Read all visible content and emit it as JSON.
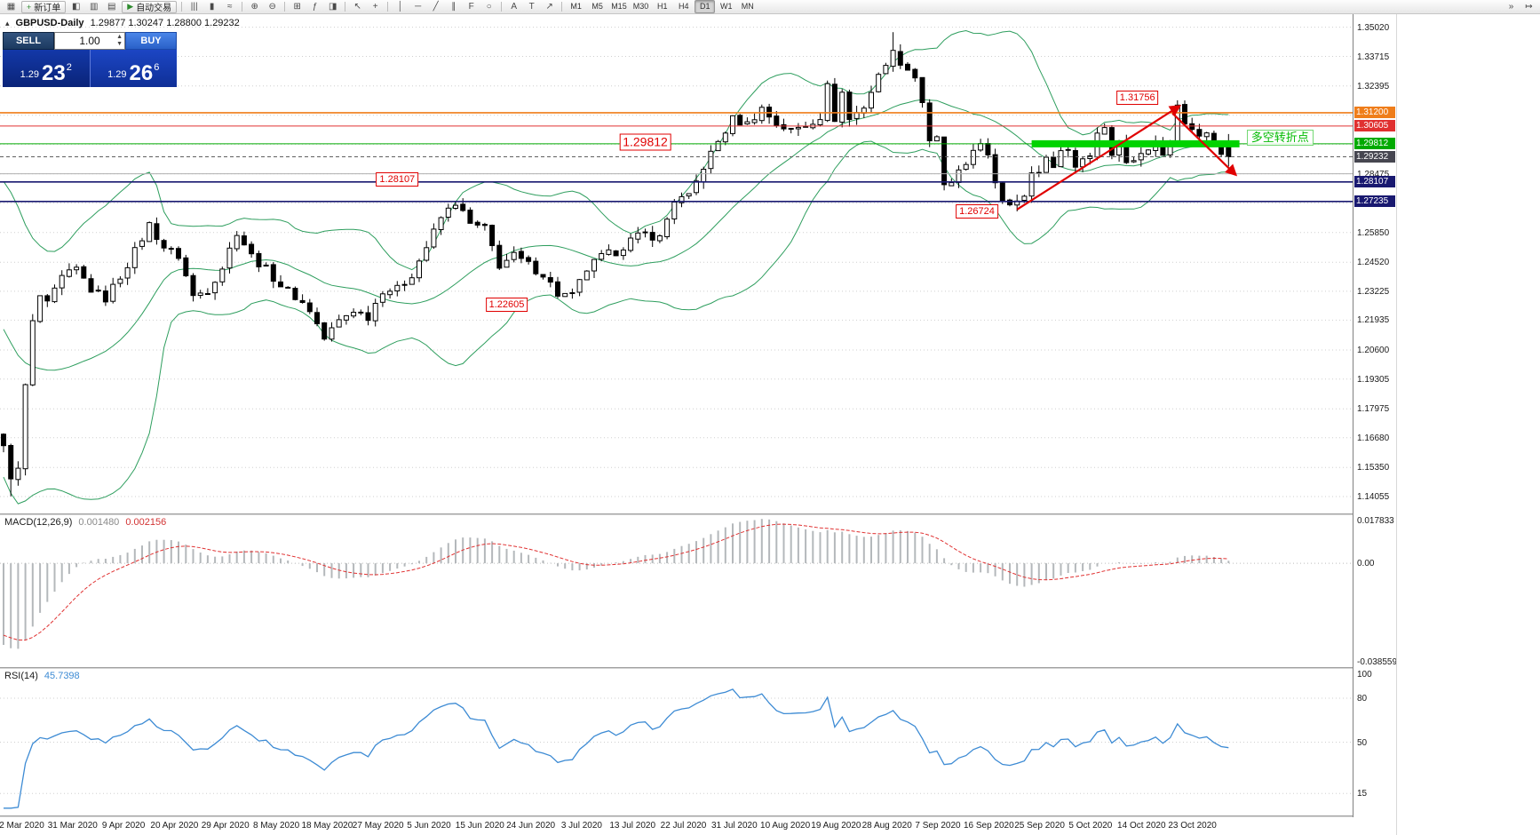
{
  "toolbar": {
    "new_order_icon": "+",
    "new_order_label": "新订单",
    "autotrade_icon": "▶",
    "autotrade_label": "自动交易",
    "timeframes": [
      "M1",
      "M5",
      "M15",
      "M30",
      "H1",
      "H4",
      "D1",
      "W1",
      "MN"
    ],
    "active_timeframe": "D1",
    "icon_groups": [
      {
        "container": "g-left",
        "icons": [
          {
            "name": "new-chart-icon",
            "glyph": "▦"
          }
        ]
      },
      {
        "container": "g-mid",
        "icons": [
          {
            "name": "market-watch-icon",
            "glyph": "◧"
          },
          {
            "name": "data-window-icon",
            "glyph": "▥"
          },
          {
            "name": "navigator-icon",
            "glyph": "▤"
          }
        ]
      },
      {
        "container": "g-charttype",
        "icons": [
          {
            "name": "bar-chart-icon",
            "glyph": "|||"
          },
          {
            "name": "candlestick-chart-icon",
            "glyph": "▮"
          },
          {
            "name": "line-chart-icon",
            "glyph": "≈"
          }
        ]
      },
      {
        "container": "g-zoom",
        "icons": [
          {
            "name": "zoom-in-icon",
            "glyph": "⊕"
          },
          {
            "name": "zoom-out-icon",
            "glyph": "⊖"
          }
        ]
      },
      {
        "container": "g-layout",
        "icons": [
          {
            "name": "tile-windows-icon",
            "glyph": "⊞"
          },
          {
            "name": "indicators-icon",
            "glyph": "ƒ"
          },
          {
            "name": "templates-icon",
            "glyph": "◨"
          }
        ]
      },
      {
        "container": "g-cursor",
        "icons": [
          {
            "name": "cursor-icon",
            "glyph": "↖"
          },
          {
            "name": "crosshair-icon",
            "glyph": "+"
          }
        ]
      },
      {
        "container": "g-draw",
        "icons": [
          {
            "name": "vertical-line-icon",
            "glyph": "│"
          },
          {
            "name": "horizontal-line-icon",
            "glyph": "─"
          },
          {
            "name": "trendline-icon",
            "glyph": "╱"
          },
          {
            "name": "equidistant-channel-icon",
            "glyph": "∥"
          },
          {
            "name": "fibonacci-icon",
            "glyph": "F"
          },
          {
            "name": "shapes-icon",
            "glyph": "○"
          }
        ]
      },
      {
        "container": "g-text",
        "icons": [
          {
            "name": "text-icon",
            "glyph": "A"
          },
          {
            "name": "text-label-icon",
            "glyph": "T"
          },
          {
            "name": "arrow-tools-icon",
            "glyph": "↗"
          }
        ]
      },
      {
        "container": "g-right",
        "icons": [
          {
            "name": "auto-scroll-icon",
            "glyph": "»"
          },
          {
            "name": "chart-shift-icon",
            "glyph": "↦"
          }
        ]
      }
    ]
  },
  "chart": {
    "collapse_icon": "▴",
    "title_symbol": "GBPUSD-Daily",
    "title_ohlc": "1.29877 1.30247 1.28800 1.29232"
  },
  "trade_panel": {
    "sell_label": "SELL",
    "buy_label": "BUY",
    "volume": "1.00",
    "sell_price_prefix": "1.29",
    "sell_price_big": "23",
    "sell_price_sup": "2",
    "buy_price_prefix": "1.29",
    "buy_price_big": "26",
    "buy_price_sup": "6"
  },
  "chart_data": {
    "main": {
      "type": "candlestick",
      "symbol": "GBPUSD",
      "period": "Daily",
      "price_min": 1.133,
      "price_max": 1.356,
      "axis_ticks": [
        "1.35020",
        "1.33715",
        "1.32395",
        "1.28475",
        "1.25850",
        "1.24520",
        "1.23225",
        "1.21935",
        "1.20600",
        "1.19305",
        "1.17975",
        "1.16680",
        "1.15350",
        "1.14055"
      ],
      "grid_prices": [
        1.3502,
        1.33715,
        1.32395,
        1.3109,
        1.2979,
        1.28475,
        1.2717,
        1.2585,
        1.2452,
        1.23225,
        1.21935,
        1.206,
        1.19305,
        1.17975,
        1.1668,
        1.1535,
        1.14055
      ],
      "price_tags": [
        {
          "text": "1.31200",
          "price": 1.312,
          "bg": "#ef7d1a"
        },
        {
          "text": "1.30605",
          "price": 1.30605,
          "bg": "#e03030"
        },
        {
          "text": "1.29812",
          "price": 1.29812,
          "bg": "#00aa00"
        },
        {
          "text": "1.29232",
          "price": 1.29232,
          "bg": "#464650"
        },
        {
          "text": "1.28107",
          "price": 1.28107,
          "bg": "#191970"
        },
        {
          "text": "1.27235",
          "price": 1.27235,
          "bg": "#191970"
        }
      ],
      "hlines": [
        {
          "price": 1.312,
          "color": "#ef7d1a",
          "w": 1.6
        },
        {
          "price": 1.30605,
          "color": "#e03030",
          "w": 1
        },
        {
          "price": 1.29812,
          "color": "#00aa00",
          "w": 1
        },
        {
          "price": 1.28475,
          "color": "#b0b0b0",
          "w": 1
        },
        {
          "price": 1.28107,
          "color": "#191970",
          "w": 1.6
        },
        {
          "price": 1.27235,
          "color": "#191970",
          "w": 1.6
        }
      ],
      "current_price": 1.29232,
      "zone": {
        "price": 1.29812,
        "day_start": 141,
        "day_end": 169.5,
        "color": "#00d300",
        "thickness": 8
      },
      "trendlines": [
        {
          "from": [
            139,
            1.2688
          ],
          "to": [
            161.3,
            1.315
          ]
        },
        {
          "from": [
            160.3,
            1.3118
          ],
          "to": [
            169,
            1.2842
          ]
        }
      ],
      "trend_color": "#e00000",
      "annotations": [
        {
          "text": "1.31756",
          "day": 155.5,
          "price": 1.3188
        },
        {
          "text": "1.29812",
          "day": 88,
          "price": 1.2988,
          "large": true
        },
        {
          "text": "1.28107",
          "day": 54,
          "price": 1.2822
        },
        {
          "text": "1.26724",
          "day": 133.5,
          "price": 1.2678
        },
        {
          "text": "1.22605",
          "day": 69,
          "price": 1.2263
        }
      ],
      "note": {
        "text": "多空转折点",
        "day": 170.5,
        "price": 1.3008,
        "color": "#00bb00"
      },
      "bollinger": {
        "period": 20,
        "deviation": 2,
        "color": "#2e9e5e"
      },
      "candle_colors": {
        "up": "#ffffff",
        "down": "#000000",
        "outline": "#000000"
      },
      "candle_count": 169,
      "noise": 0.004,
      "close_anchors": [
        [
          0,
          1.162
        ],
        [
          1,
          1.15
        ],
        [
          2,
          1.152
        ],
        [
          3,
          1.19
        ],
        [
          4,
          1.218
        ],
        [
          5,
          1.23
        ],
        [
          6,
          1.226
        ],
        [
          8,
          1.238
        ],
        [
          10,
          1.242
        ],
        [
          12,
          1.233
        ],
        [
          14,
          1.229
        ],
        [
          16,
          1.239
        ],
        [
          18,
          1.25
        ],
        [
          20,
          1.262
        ],
        [
          22,
          1.252
        ],
        [
          24,
          1.248
        ],
        [
          26,
          1.23
        ],
        [
          28,
          1.233
        ],
        [
          30,
          1.243
        ],
        [
          32,
          1.259
        ],
        [
          34,
          1.248
        ],
        [
          36,
          1.242
        ],
        [
          38,
          1.235
        ],
        [
          40,
          1.23
        ],
        [
          42,
          1.224
        ],
        [
          44,
          1.211
        ],
        [
          46,
          1.219
        ],
        [
          48,
          1.224
        ],
        [
          50,
          1.221
        ],
        [
          52,
          1.233
        ],
        [
          54,
          1.233
        ],
        [
          56,
          1.24
        ],
        [
          58,
          1.252
        ],
        [
          60,
          1.265
        ],
        [
          62,
          1.272
        ],
        [
          64,
          1.262
        ],
        [
          66,
          1.26
        ],
        [
          68,
          1.244
        ],
        [
          70,
          1.248
        ],
        [
          72,
          1.244
        ],
        [
          74,
          1.24
        ],
        [
          76,
          1.231
        ],
        [
          78,
          1.23
        ],
        [
          80,
          1.242
        ],
        [
          82,
          1.2475
        ],
        [
          84,
          1.25
        ],
        [
          86,
          1.255
        ],
        [
          88,
          1.258
        ],
        [
          90,
          1.256
        ],
        [
          92,
          1.273
        ],
        [
          94,
          1.274
        ],
        [
          96,
          1.288
        ],
        [
          98,
          1.299
        ],
        [
          100,
          1.309
        ],
        [
          102,
          1.307
        ],
        [
          104,
          1.314
        ],
        [
          106,
          1.307
        ],
        [
          108,
          1.304
        ],
        [
          110,
          1.3065
        ],
        [
          112,
          1.3105
        ],
        [
          113,
          1.3235
        ],
        [
          114,
          1.3095
        ],
        [
          115,
          1.321
        ],
        [
          116,
          1.309
        ],
        [
          118,
          1.315
        ],
        [
          120,
          1.328
        ],
        [
          121,
          1.335
        ],
        [
          122,
          1.3385
        ],
        [
          123,
          1.335
        ],
        [
          125,
          1.328
        ],
        [
          126,
          1.317
        ],
        [
          127,
          1.298
        ],
        [
          128,
          1.3
        ],
        [
          129,
          1.28
        ],
        [
          130,
          1.2795
        ],
        [
          131,
          1.2845
        ],
        [
          132,
          1.289
        ],
        [
          133,
          1.2965
        ],
        [
          134,
          1.297
        ],
        [
          135,
          1.2915
        ],
        [
          136,
          1.2815
        ],
        [
          137,
          1.2735
        ],
        [
          138,
          1.272
        ],
        [
          139,
          1.2745
        ],
        [
          140,
          1.2745
        ],
        [
          141,
          1.284
        ],
        [
          142,
          1.286
        ],
        [
          143,
          1.292
        ],
        [
          144,
          1.289
        ],
        [
          145,
          1.2935
        ],
        [
          146,
          1.2975
        ],
        [
          147,
          1.2875
        ],
        [
          148,
          1.2915
        ],
        [
          149,
          1.2935
        ],
        [
          150,
          1.3035
        ],
        [
          151,
          1.306
        ],
        [
          152,
          1.2935
        ],
        [
          153,
          1.301
        ],
        [
          154,
          1.289
        ],
        [
          155,
          1.2915
        ],
        [
          156,
          1.2945
        ],
        [
          157,
          1.2945
        ],
        [
          158,
          1.299
        ],
        [
          159,
          1.295
        ],
        [
          160,
          1.3
        ],
        [
          161,
          1.3145
        ],
        [
          162,
          1.308
        ],
        [
          163,
          1.304
        ],
        [
          164,
          1.302
        ],
        [
          165,
          1.3045
        ],
        [
          166,
          1.299
        ],
        [
          167,
          1.295
        ],
        [
          168,
          1.2923
        ]
      ],
      "forced": {
        "low_day": 1,
        "low": 1.1406,
        "sep_high_day": 122,
        "sep_high": 1.348,
        "oct_high_day": 161,
        "oct_high": 1.31756,
        "last_open": 1.29877,
        "last_high": 1.30247,
        "last_low": 1.288,
        "last_close": 1.29232
      }
    },
    "macd": {
      "type": "histogram+line",
      "label": "MACD(12,26,9)",
      "value_main": "0.001480",
      "value_signal": "0.002156",
      "params": {
        "fast": 12,
        "slow": 26,
        "signal": 9
      },
      "scale_max": 0.017833,
      "scale_min": -0.038559,
      "axis_labels": [
        {
          "text": "0.017833",
          "v": 0.017833
        },
        {
          "text": "0.00",
          "v": 0
        },
        {
          "text": "-0.038559",
          "v": -0.038559
        }
      ],
      "histogram_color": "#b4b8bb",
      "signal_color": "#e03131"
    },
    "rsi": {
      "type": "line",
      "label": "RSI(14)",
      "value_text": "45.7398",
      "period": 14,
      "scale_min": 0,
      "scale_max": 100,
      "axis_labels": [
        {
          "text": "100",
          "v": 100
        },
        {
          "text": "80",
          "v": 80
        },
        {
          "text": "50",
          "v": 50
        },
        {
          "text": "15",
          "v": 15
        }
      ],
      "dotted_levels": [
        80,
        50,
        15
      ],
      "line_color": "#3d8bd4"
    },
    "dates": {
      "first_day": 2.5,
      "step_days": 6.98,
      "labels": [
        "2 Mar 2020",
        "31 Mar 2020",
        "9 Apr 2020",
        "20 Apr 2020",
        "29 Apr 2020",
        "8 May 2020",
        "18 May 2020",
        "27 May 2020",
        "5 Jun 2020",
        "15 Jun 2020",
        "24 Jun 2020",
        "3 Jul 2020",
        "13 Jul 2020",
        "22 Jul 2020",
        "31 Jul 2020",
        "10 Aug 2020",
        "19 Aug 2020",
        "28 Aug 2020",
        "7 Sep 2020",
        "16 Sep 2020",
        "25 Sep 2020",
        "5 Oct 2020",
        "14 Oct 2020",
        "23 Oct 2020"
      ]
    }
  }
}
